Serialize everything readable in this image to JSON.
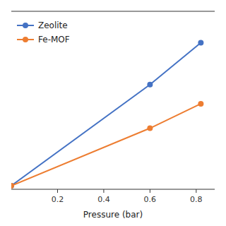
{
  "chart_data": {
    "type": "line",
    "xlabel": "Pressure (bar)",
    "x": [
      0.0,
      0.6,
      0.82
    ],
    "series": [
      {
        "name": "Zeolite",
        "color": "#4472C4",
        "values": [
          0.0,
          0.58,
          0.82
        ],
        "marker": "circle"
      },
      {
        "name": "Fe-MOF",
        "color": "#ED7D31",
        "values": [
          0.0,
          0.33,
          0.47
        ],
        "marker": "circle"
      }
    ],
    "xlim": [
      0.0,
      0.88
    ],
    "ylim": [
      -0.02,
      1.0
    ],
    "xticks": [
      0.2,
      0.4,
      0.6,
      0.8
    ],
    "legend": "upper left",
    "tick_labels": "x",
    "grid": false
  }
}
